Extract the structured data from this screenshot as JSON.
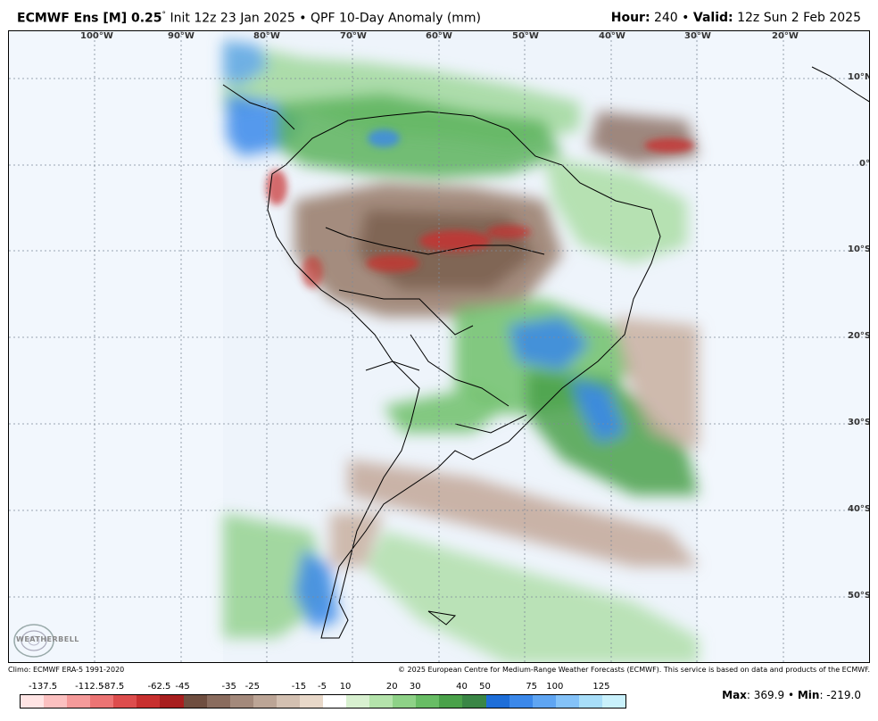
{
  "header": {
    "model": "ECMWF Ens [M] 0.25",
    "degree": "°",
    "init": " Init 12z 23 Jan 2025",
    "sep": " • ",
    "product": "QPF 10-Day Anomaly (mm)",
    "hour_label": "Hour:",
    "hour_value": " 240",
    "sep2": " • ",
    "valid_label": "Valid:",
    "valid_value": " 12z Sun 2 Feb 2025"
  },
  "axes": {
    "longitudes": [
      "100°W",
      "90°W",
      "80°W",
      "70°W",
      "60°W",
      "50°W",
      "40°W",
      "30°W",
      "20°W"
    ],
    "latitudes": [
      "10°N",
      "0°",
      "10°S",
      "20°S",
      "30°S",
      "40°S",
      "50°S"
    ]
  },
  "credits": {
    "climo": "Climo: ECMWF ERA-5 1991-2020",
    "copyright": "© 2025 European Centre for Medium-Range Weather Forecasts (ECMWF). This service is based on data and products of the ECMWF."
  },
  "logo": {
    "text": "WEATHERBELL"
  },
  "colorbar": {
    "ticks": [
      "-137.5",
      "-112.5",
      "-87.5",
      "-62.5",
      "-45",
      "-35",
      "-25",
      "-15",
      "-5",
      "10",
      "20",
      "30",
      "40",
      "50",
      "75",
      "100",
      "125"
    ],
    "colors": [
      "#ffe4e4",
      "#fbc0c0",
      "#f59a9a",
      "#ec7474",
      "#dd4d4d",
      "#c8302f",
      "#a81f1f",
      "#6f4e40",
      "#8a6c5e",
      "#a3897b",
      "#bca596",
      "#d3c0b1",
      "#e8d8c9",
      "#ffffff",
      "#d8f0d0",
      "#b4e3ab",
      "#8ed287",
      "#68bd65",
      "#4aa14a",
      "#3a8646",
      "#1e6ed8",
      "#3b88ea",
      "#5fa5f2",
      "#84c2f8",
      "#a8def9",
      "#c9f1fc"
    ]
  },
  "stats": {
    "max_label": "Max",
    "max_value": ": 369.9",
    "sep": " • ",
    "min_label": "Min",
    "min_value": ": -219.0"
  }
}
